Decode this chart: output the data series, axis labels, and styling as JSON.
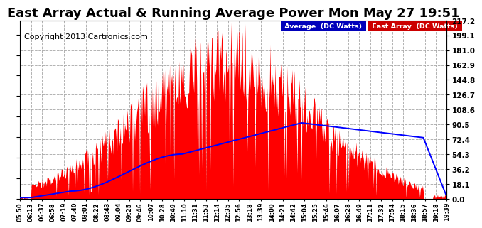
{
  "title": "East Array Actual & Running Average Power Mon May 27 19:51",
  "copyright": "Copyright 2013 Cartronics.com",
  "ylabel_right_ticks": [
    0.0,
    18.1,
    36.2,
    54.3,
    72.4,
    90.5,
    108.6,
    126.7,
    144.8,
    162.9,
    181.0,
    199.1,
    217.2
  ],
  "ymax": 217.2,
  "ymin": 0.0,
  "x_tick_labels": [
    "05:50",
    "06:13",
    "06:37",
    "06:58",
    "07:19",
    "07:40",
    "08:01",
    "08:22",
    "08:43",
    "09:04",
    "09:25",
    "09:46",
    "10:07",
    "10:28",
    "10:49",
    "11:10",
    "11:31",
    "11:53",
    "12:14",
    "12:35",
    "12:56",
    "13:18",
    "13:39",
    "14:00",
    "14:21",
    "14:42",
    "15:04",
    "15:25",
    "15:46",
    "16:07",
    "16:28",
    "16:49",
    "17:11",
    "17:32",
    "17:54",
    "18:15",
    "18:36",
    "18:57",
    "19:18",
    "19:39"
  ],
  "legend_avg_bg": "#0000bb",
  "legend_east_bg": "#cc0000",
  "bar_color": "#ff0000",
  "avg_line_color": "#0000ff",
  "bg_color": "#ffffff",
  "grid_color": "#aaaaaa",
  "title_fontsize": 13,
  "copyright_fontsize": 8,
  "n_points": 600
}
